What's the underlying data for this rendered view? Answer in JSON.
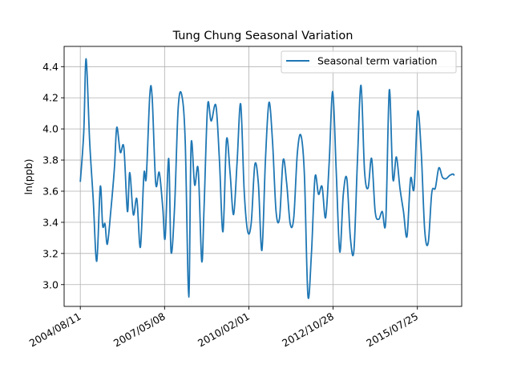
{
  "chart_data": {
    "type": "line",
    "title": "Tung Chung Seasonal Variation",
    "xlabel": "",
    "ylabel": "ln(ppb)",
    "x_type": "date",
    "xlim": [
      "2004/02/01",
      "2017/01/01"
    ],
    "ylim": [
      2.86,
      4.53
    ],
    "x_ticks": [
      "2004/08/11",
      "2007/05/08",
      "2010/02/01",
      "2012/10/28",
      "2015/07/25"
    ],
    "y_ticks": [
      3.0,
      3.2,
      3.4,
      3.6,
      3.8,
      4.0,
      4.2,
      4.4
    ],
    "y_tick_labels": [
      "3.0",
      "3.2",
      "3.4",
      "3.6",
      "3.8",
      "4.0",
      "4.2",
      "4.4"
    ],
    "grid": true,
    "legend": {
      "position": "top-right"
    },
    "series": [
      {
        "name": "Seasonal term variation",
        "color": "#1f77b4",
        "x": [
          "2004/08/11",
          "2004/09/21",
          "2004/10/19",
          "2004/11/30",
          "2005/01/11",
          "2005/02/22",
          "2005/04/05",
          "2005/05/03",
          "2005/05/31",
          "2005/06/28",
          "2005/08/09",
          "2005/09/20",
          "2005/10/18",
          "2005/11/29",
          "2006/01/10",
          "2006/02/21",
          "2006/03/21",
          "2006/05/02",
          "2006/06/13",
          "2006/07/25",
          "2006/09/05",
          "2006/10/03",
          "2006/11/14",
          "2006/12/12",
          "2007/01/23",
          "2007/03/06",
          "2007/04/17",
          "2007/05/15",
          "2007/06/26",
          "2007/07/24",
          "2007/09/04",
          "2007/10/16",
          "2007/11/27",
          "2008/01/08",
          "2008/02/19",
          "2008/03/18",
          "2008/04/29",
          "2008/06/10",
          "2008/07/22",
          "2008/08/19",
          "2008/09/30",
          "2008/11/11",
          "2009/01/06",
          "2009/02/17",
          "2009/03/31",
          "2009/05/12",
          "2009/06/23",
          "2009/08/04",
          "2009/09/15",
          "2009/10/27",
          "2009/12/08",
          "2010/01/19",
          "2010/03/02",
          "2010/04/13",
          "2010/05/25",
          "2010/07/06",
          "2010/08/17",
          "2010/09/28",
          "2010/11/09",
          "2010/12/21",
          "2011/02/01",
          "2011/03/15",
          "2011/04/26",
          "2011/06/07",
          "2011/07/19",
          "2011/08/30",
          "2011/10/11",
          "2011/11/22",
          "2012/01/03",
          "2012/02/14",
          "2012/03/27",
          "2012/05/08",
          "2012/06/19",
          "2012/07/31",
          "2012/09/11",
          "2012/10/23",
          "2012/12/04",
          "2013/01/15",
          "2013/02/26",
          "2013/04/09",
          "2013/05/21",
          "2013/07/02",
          "2013/08/13",
          "2013/09/24",
          "2013/11/05",
          "2013/12/17",
          "2014/01/28",
          "2014/03/11",
          "2014/04/22",
          "2014/06/03",
          "2014/07/15",
          "2014/08/26",
          "2014/10/07",
          "2014/11/18",
          "2014/12/30",
          "2015/02/10",
          "2015/03/24",
          "2015/05/05",
          "2015/06/16",
          "2015/07/28",
          "2015/09/08",
          "2015/10/20",
          "2015/12/01",
          "2016/01/12",
          "2016/02/23",
          "2016/04/05",
          "2016/05/17",
          "2016/06/28",
          "2016/08/09",
          "2016/09/20",
          "2016/10/04"
        ],
        "values": [
          3.66,
          3.98,
          4.45,
          3.92,
          3.55,
          3.15,
          3.63,
          3.38,
          3.39,
          3.26,
          3.48,
          3.75,
          4.01,
          3.85,
          3.88,
          3.47,
          3.72,
          3.45,
          3.55,
          3.24,
          3.71,
          3.69,
          4.22,
          4.2,
          3.65,
          3.72,
          3.49,
          3.3,
          3.81,
          3.21,
          3.5,
          4.13,
          4.22,
          3.92,
          2.92,
          3.9,
          3.64,
          3.74,
          3.15,
          3.5,
          4.15,
          4.05,
          4.15,
          3.8,
          3.34,
          3.93,
          3.72,
          3.45,
          3.79,
          4.16,
          3.6,
          3.34,
          3.4,
          3.77,
          3.65,
          3.22,
          3.8,
          4.17,
          3.92,
          3.47,
          3.43,
          3.8,
          3.65,
          3.39,
          3.43,
          3.84,
          3.96,
          3.71,
          2.93,
          3.2,
          3.69,
          3.58,
          3.63,
          3.43,
          3.78,
          4.24,
          3.73,
          3.21,
          3.58,
          3.68,
          3.3,
          3.22,
          3.8,
          4.28,
          3.73,
          3.62,
          3.81,
          3.47,
          3.42,
          3.47,
          3.41,
          4.25,
          3.68,
          3.82,
          3.62,
          3.47,
          3.31,
          3.68,
          3.62,
          4.11,
          3.86,
          3.35,
          3.27,
          3.59,
          3.62,
          3.75,
          3.69,
          3.68,
          3.7,
          3.71,
          3.7
        ]
      }
    ]
  }
}
